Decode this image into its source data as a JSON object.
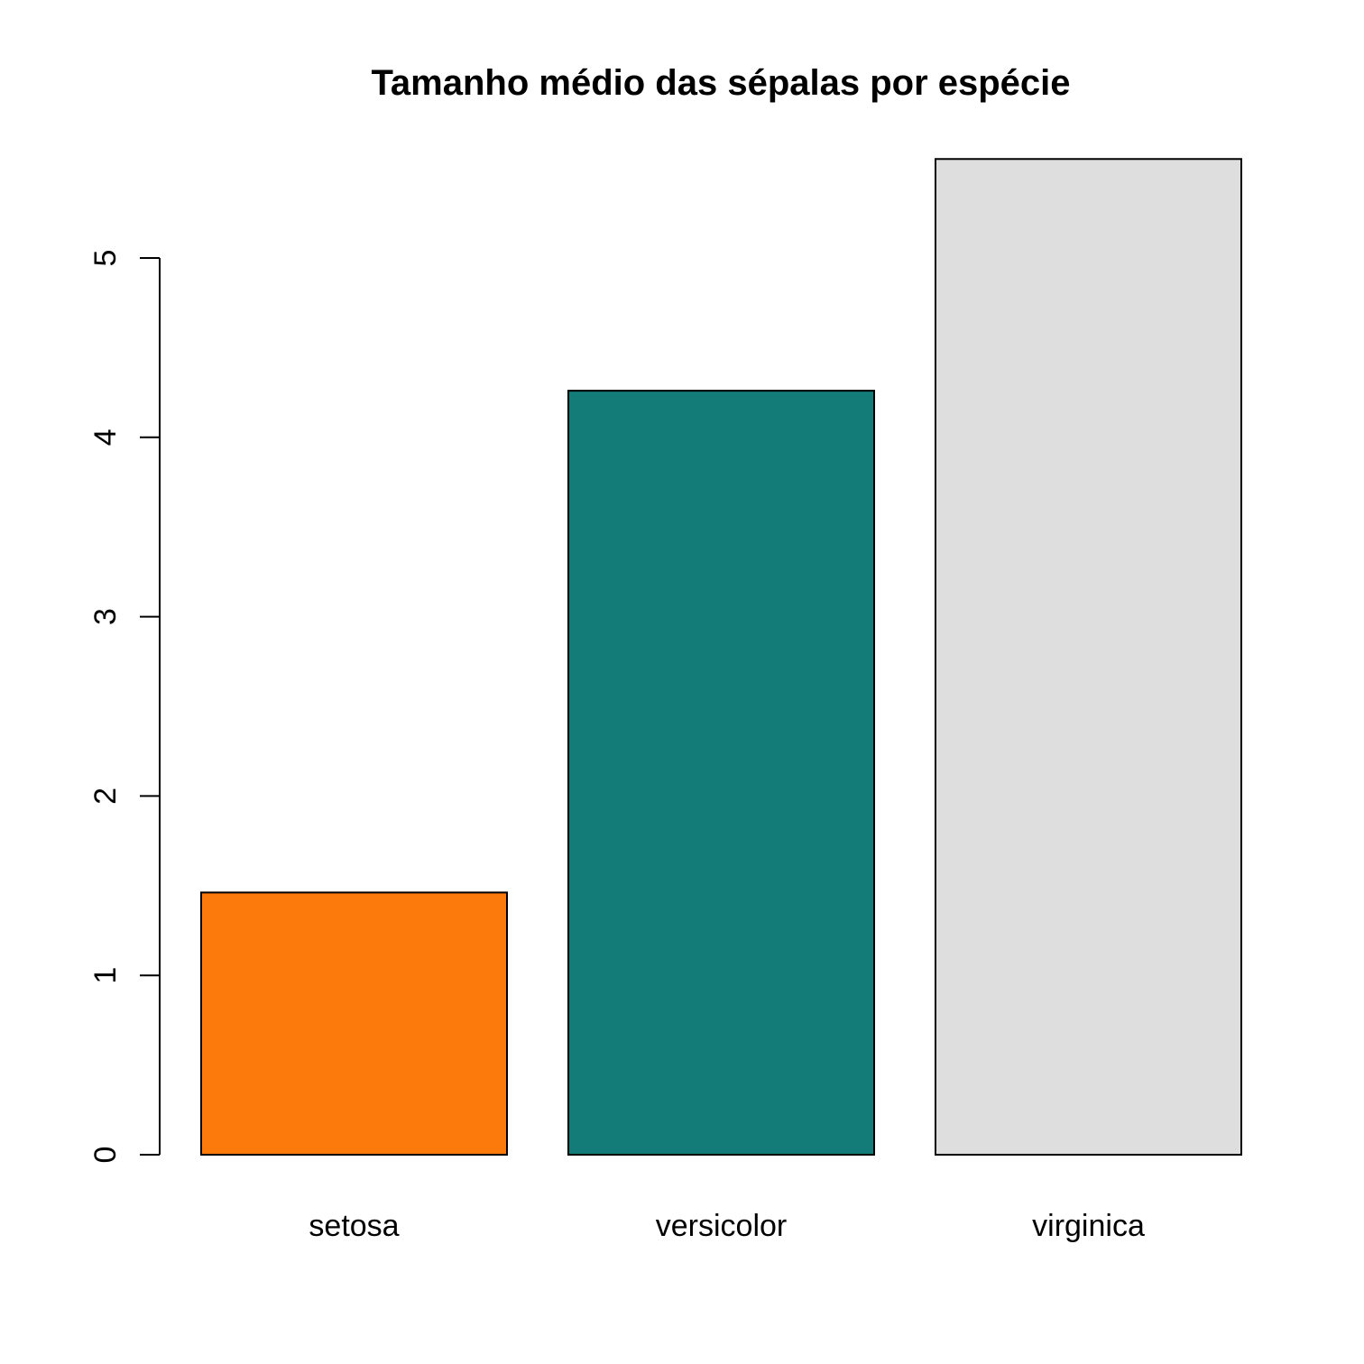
{
  "chart_data": {
    "type": "bar",
    "title": "Tamanho médio das sépalas por espécie",
    "xlabel": "",
    "ylabel": "",
    "categories": [
      "setosa",
      "versicolor",
      "virginica"
    ],
    "values": [
      1.462,
      4.26,
      5.552
    ],
    "colors": [
      "#FC790C",
      "#137C79",
      "#DEDEDE"
    ],
    "y_ticks": [
      0,
      1,
      2,
      3,
      4,
      5
    ],
    "ylim": [
      0,
      5.552
    ],
    "grid": false,
    "legend": "none",
    "bar_border_color": "#000000"
  }
}
